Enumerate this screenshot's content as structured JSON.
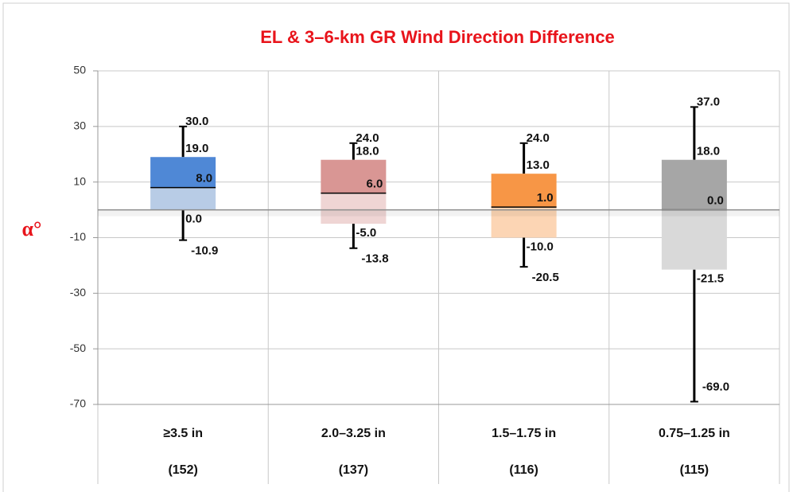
{
  "chart_data": {
    "type": "box",
    "title": "EL & 3–6-km GR Wind Direction Difference",
    "y_label": "α°",
    "categories": [
      "≥3.5 in",
      "2.0–3.25 in",
      "1.5–1.75 in",
      "0.75–1.25 in"
    ],
    "counts": [
      "(152)",
      "(137)",
      "(116)",
      "(115)"
    ],
    "boxes": [
      {
        "values": [
          30,
          19,
          8,
          0,
          -10.9
        ],
        "value_labels": [
          "30.0",
          "19.0",
          "8.0",
          "0.0",
          "-10.9"
        ],
        "color": "#4f88d6",
        "color_light": "#b8cce6"
      },
      {
        "values": [
          24,
          18,
          6,
          -5,
          -13.8
        ],
        "value_labels": [
          "24.0",
          "18.0",
          "6.0",
          "-5.0",
          "-13.8"
        ],
        "color": "#d99694",
        "color_light": "#efd5d4"
      },
      {
        "values": [
          24,
          13,
          1,
          -10,
          -20.5
        ],
        "value_labels": [
          "24.0",
          "13.0",
          "1.0",
          "-10.0",
          "-20.5"
        ],
        "color": "#f79646",
        "color_light": "#fcd5b4"
      },
      {
        "values": [
          37,
          18,
          0,
          -21.5,
          -69
        ],
        "value_labels": [
          "37.0",
          "18.0",
          "0.0",
          "-21.5",
          "-69.0"
        ],
        "color": "#a6a6a6",
        "color_light": "#d9d9d9"
      }
    ],
    "ylim": [
      -70,
      50
    ],
    "yticks": [
      -70,
      -50,
      -30,
      -10,
      10,
      30,
      50
    ],
    "grid": true
  }
}
